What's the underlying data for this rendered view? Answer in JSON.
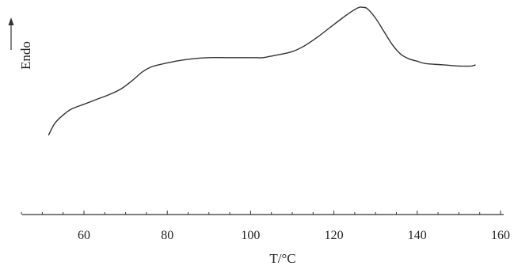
{
  "chart_data": {
    "type": "line",
    "title": "",
    "xlabel": "T/°C",
    "ylabel": "Endo",
    "xlim": [
      44,
      160
    ],
    "x_ticks": [
      60,
      80,
      100,
      120,
      140,
      160
    ],
    "x_tick_labels": [
      "60",
      "80",
      "100",
      "120",
      "140",
      "160"
    ],
    "y_ticks": [],
    "grid": false,
    "legend": "none",
    "series": [
      {
        "color": "#333333",
        "x": [
          51.5,
          53,
          55,
          57,
          60,
          63,
          66,
          69,
          72,
          74,
          76,
          78,
          82,
          86,
          90,
          94,
          98,
          101,
          103,
          106,
          110,
          113,
          116,
          119,
          122,
          124,
          126,
          127,
          128,
          130,
          132,
          134,
          136,
          138,
          140,
          142,
          146,
          150,
          153,
          154
        ],
        "y": [
          0.06,
          0.16,
          0.23,
          0.28,
          0.32,
          0.36,
          0.4,
          0.45,
          0.53,
          0.59,
          0.63,
          0.65,
          0.68,
          0.7,
          0.71,
          0.71,
          0.71,
          0.71,
          0.71,
          0.73,
          0.76,
          0.81,
          0.88,
          0.96,
          1.04,
          1.09,
          1.13,
          1.13,
          1.12,
          1.04,
          0.93,
          0.82,
          0.74,
          0.7,
          0.68,
          0.66,
          0.65,
          0.64,
          0.64,
          0.65
        ]
      }
    ]
  }
}
